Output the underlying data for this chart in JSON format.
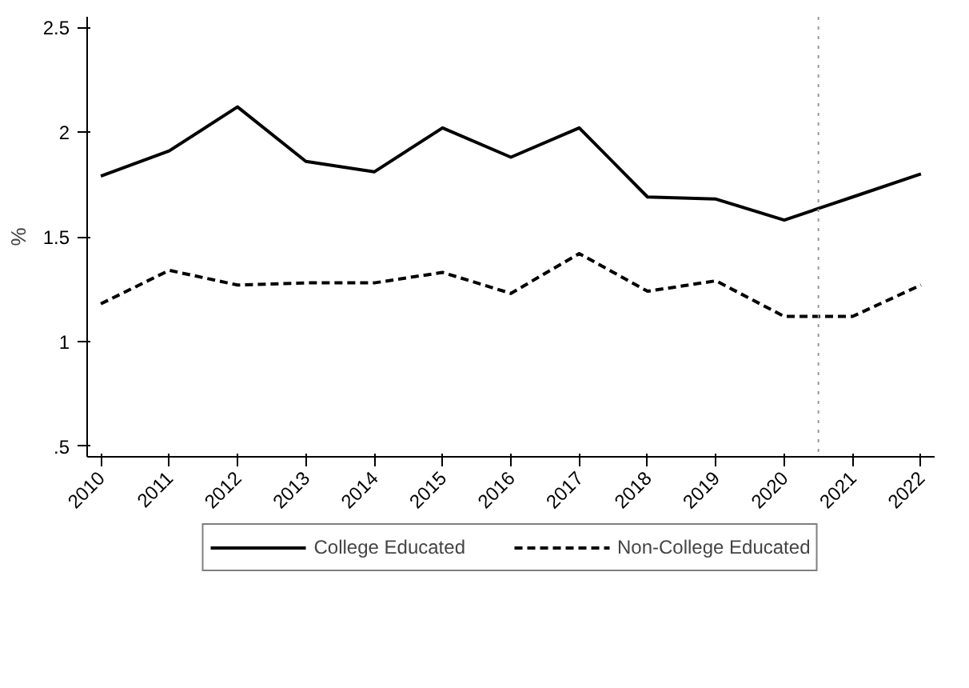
{
  "chart_data": {
    "type": "line",
    "ylabel": "%",
    "x": [
      2010,
      2011,
      2012,
      2013,
      2014,
      2015,
      2016,
      2017,
      2018,
      2019,
      2020,
      2021,
      2022
    ],
    "xlim": [
      2009.8,
      2022.2
    ],
    "xticks": [
      2010,
      2011,
      2012,
      2013,
      2014,
      2015,
      2016,
      2017,
      2018,
      2019,
      2020,
      2021,
      2022
    ],
    "ylim": [
      0.45,
      2.55
    ],
    "yticks": [
      {
        "value": 0.5,
        "label": ".5"
      },
      1,
      1.5,
      2,
      2.5
    ],
    "series": [
      {
        "name": "College Educated",
        "color": "#000000",
        "line_style": "solid",
        "values": [
          1.79,
          1.91,
          2.12,
          1.86,
          1.81,
          2.02,
          1.88,
          2.02,
          1.69,
          1.68,
          1.58,
          1.69,
          1.8
        ]
      },
      {
        "name": "Non-College Educated",
        "color": "#000000",
        "line_style": "dashed",
        "values": [
          1.18,
          1.34,
          1.27,
          1.28,
          1.28,
          1.33,
          1.23,
          1.42,
          1.24,
          1.29,
          1.12,
          1.12,
          1.27
        ]
      }
    ],
    "ref_lines": [
      {
        "axis": "x",
        "value": 2020.5,
        "color": "#999999",
        "line_style": "dotted"
      }
    ],
    "grid": false,
    "legend": "bottom"
  }
}
